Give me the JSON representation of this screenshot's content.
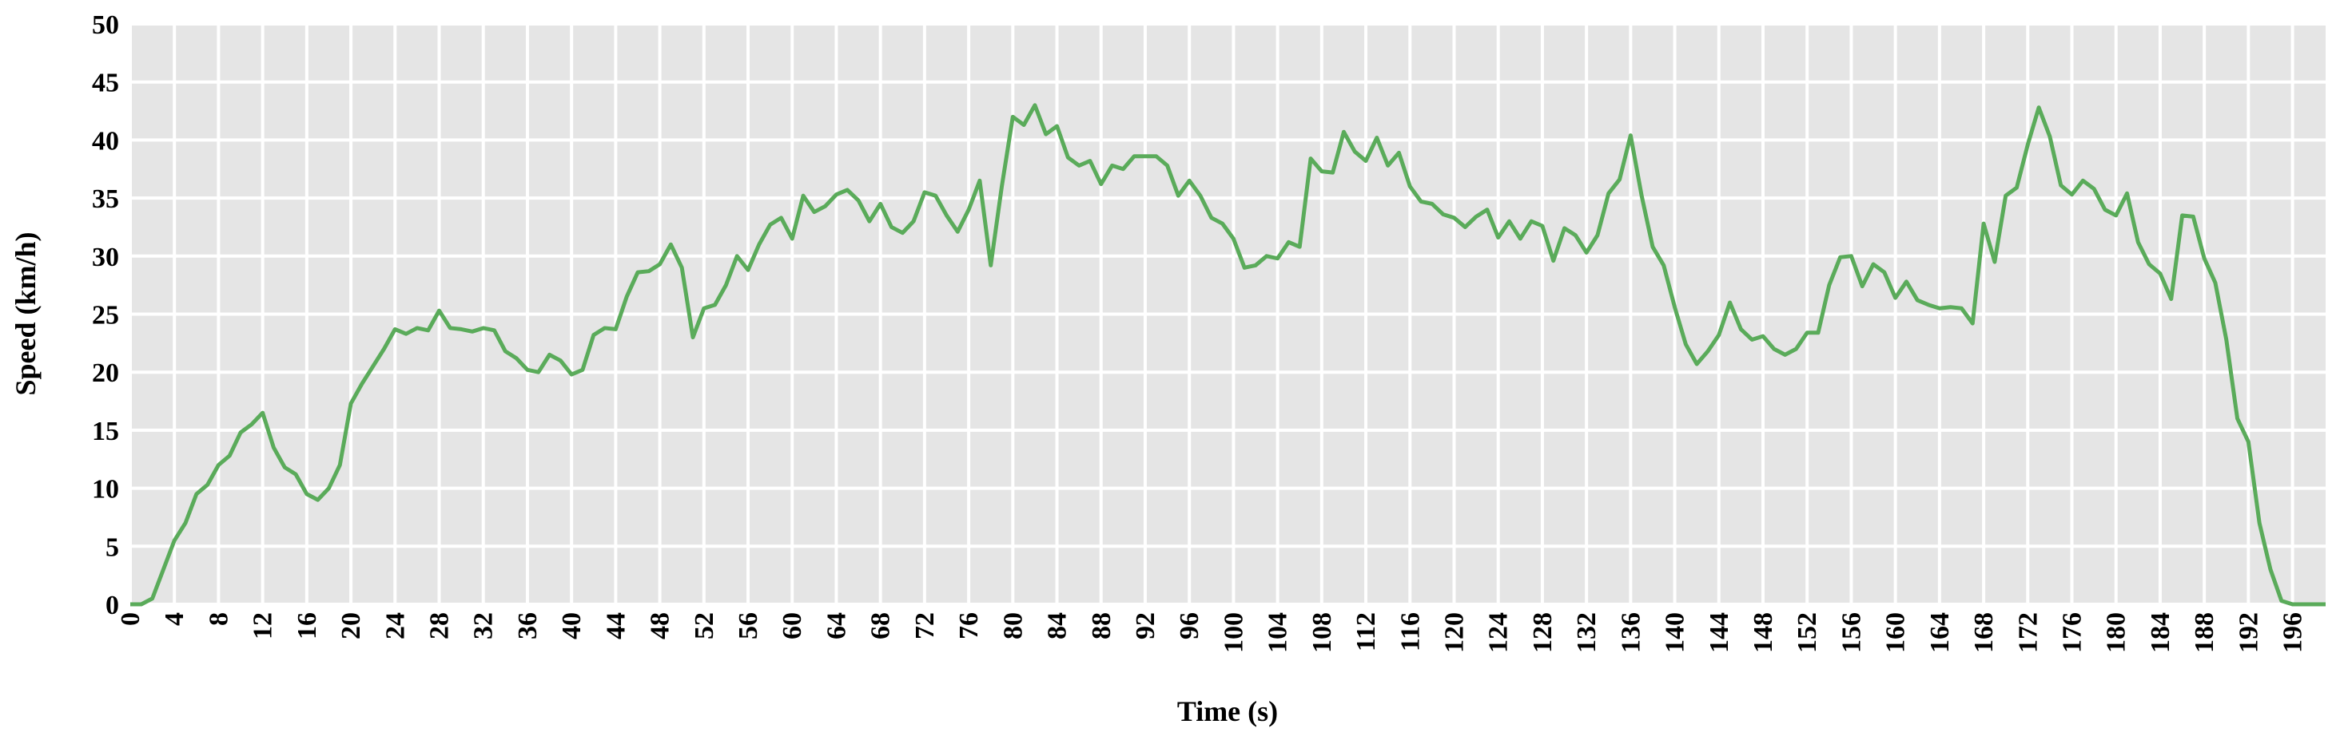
{
  "chart_data": {
    "type": "line",
    "x_label": "Time (s)",
    "y_label": "Speed (km/h)",
    "xlim": [
      0,
      199
    ],
    "ylim": [
      0,
      50
    ],
    "xticks": [
      0,
      4,
      8,
      12,
      16,
      20,
      24,
      28,
      32,
      36,
      40,
      44,
      48,
      52,
      56,
      60,
      64,
      68,
      72,
      76,
      80,
      84,
      88,
      92,
      96,
      100,
      104,
      108,
      112,
      116,
      120,
      124,
      128,
      132,
      136,
      140,
      144,
      148,
      152,
      156,
      160,
      164,
      168,
      172,
      176,
      180,
      184,
      188,
      192,
      196
    ],
    "yticks": [
      0,
      5,
      10,
      15,
      20,
      25,
      30,
      35,
      40,
      45,
      50
    ],
    "grid": true,
    "x": [
      0,
      1,
      2,
      3,
      4,
      5,
      6,
      7,
      8,
      9,
      10,
      11,
      12,
      13,
      14,
      15,
      16,
      17,
      18,
      19,
      20,
      21,
      22,
      23,
      24,
      25,
      26,
      27,
      28,
      29,
      30,
      31,
      32,
      33,
      34,
      35,
      36,
      37,
      38,
      39,
      40,
      41,
      42,
      43,
      44,
      45,
      46,
      47,
      48,
      49,
      50,
      51,
      52,
      53,
      54,
      55,
      56,
      57,
      58,
      59,
      60,
      61,
      62,
      63,
      64,
      65,
      66,
      67,
      68,
      69,
      70,
      71,
      72,
      73,
      74,
      75,
      76,
      77,
      78,
      79,
      80,
      81,
      82,
      83,
      84,
      85,
      86,
      87,
      88,
      89,
      90,
      91,
      92,
      93,
      94,
      95,
      96,
      97,
      98,
      99,
      100,
      101,
      102,
      103,
      104,
      105,
      106,
      107,
      108,
      109,
      110,
      111,
      112,
      113,
      114,
      115,
      116,
      117,
      118,
      119,
      120,
      121,
      122,
      123,
      124,
      125,
      126,
      127,
      128,
      129,
      130,
      131,
      132,
      133,
      134,
      135,
      136,
      137,
      138,
      139,
      140,
      141,
      142,
      143,
      144,
      145,
      146,
      147,
      148,
      149,
      150,
      151,
      152,
      153,
      154,
      155,
      156,
      157,
      158,
      159,
      160,
      161,
      162,
      163,
      164,
      165,
      166,
      167,
      168,
      169,
      170,
      171,
      172,
      173,
      174,
      175,
      176,
      177,
      178,
      179,
      180,
      181,
      182,
      183,
      184,
      185,
      186,
      187,
      188,
      189,
      190,
      191,
      192,
      193,
      194,
      195,
      196,
      197,
      198,
      199
    ],
    "series": [
      {
        "color": "#5aab5a",
        "values": [
          0,
          0,
          0.5,
          3,
          5.5,
          7,
          9.5,
          10.3,
          12,
          12.8,
          14.8,
          15.5,
          16.5,
          13.5,
          11.8,
          11.2,
          9.5,
          9,
          10,
          12,
          17.3,
          19,
          20.5,
          22,
          23.7,
          23.3,
          23.8,
          23.6,
          25.3,
          23.8,
          23.7,
          23.5,
          23.8,
          23.6,
          21.8,
          21.2,
          20.2,
          20,
          21.5,
          21,
          19.8,
          20.2,
          23.2,
          23.8,
          23.7,
          26.5,
          28.6,
          28.7,
          29.3,
          31,
          29,
          23,
          25.5,
          25.8,
          27.5,
          30,
          28.8,
          31,
          32.7,
          33.3,
          31.5,
          35.2,
          33.8,
          34.3,
          35.3,
          35.7,
          34.8,
          33,
          34.5,
          32.5,
          32,
          33,
          35.5,
          35.2,
          33.5,
          32.1,
          34,
          36.5,
          29.2,
          36,
          42,
          41.3,
          43,
          40.5,
          41.2,
          38.5,
          37.8,
          38.2,
          36.2,
          37.8,
          37.5,
          38.6,
          38.6,
          38.6,
          37.8,
          35.2,
          36.5,
          35.2,
          33.3,
          32.8,
          31.5,
          29,
          29.2,
          30,
          29.8,
          31.2,
          30.8,
          38.4,
          37.3,
          37.2,
          40.7,
          39,
          38.2,
          40.2,
          37.8,
          38.9,
          36,
          34.7,
          34.5,
          33.6,
          33.3,
          32.5,
          33.4,
          34,
          31.6,
          33,
          31.5,
          33,
          32.6,
          29.6,
          32.4,
          31.8,
          30.3,
          31.8,
          35.4,
          36.6,
          40.4,
          35.2,
          30.8,
          29.2,
          25.6,
          22.4,
          20.7,
          21.8,
          23.2,
          26,
          23.7,
          22.8,
          23.1,
          22,
          21.5,
          22,
          23.4,
          23.4,
          27.5,
          29.9,
          30,
          27.4,
          29.3,
          28.6,
          26.4,
          27.8,
          26.2,
          25.8,
          25.5,
          25.6,
          25.5,
          24.2,
          32.8,
          29.5,
          35.2,
          35.9,
          39.6,
          42.8,
          40.3,
          36.1,
          35.3,
          36.5,
          35.8,
          34,
          33.5,
          35.4,
          31.2,
          29.3,
          28.5,
          26.3,
          33.5,
          33.4,
          29.8,
          27.7,
          22.8,
          16,
          14,
          7,
          3,
          0.3,
          0,
          0,
          0,
          0
        ]
      }
    ]
  }
}
